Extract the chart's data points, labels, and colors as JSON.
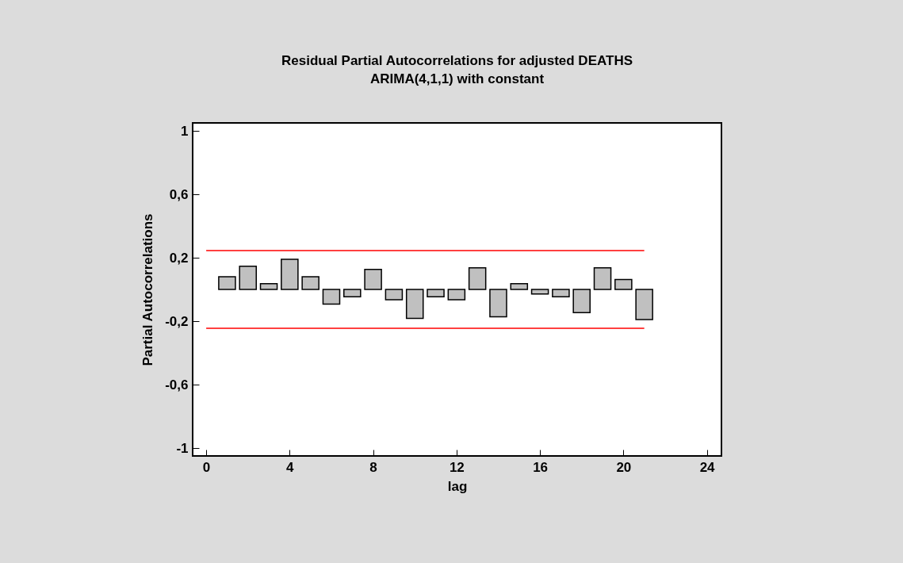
{
  "chart_data": {
    "type": "bar",
    "title": "Residual Partial Autocorrelations for adjusted DEATHS",
    "subtitle": "ARIMA(4,1,1) with constant",
    "xlabel": "lag",
    "ylabel": "Partial Autocorrelations",
    "x": [
      1,
      2,
      3,
      4,
      5,
      6,
      7,
      8,
      9,
      10,
      11,
      12,
      13,
      14,
      15,
      16,
      17,
      18,
      19,
      20,
      21
    ],
    "series": [
      {
        "color": "#c0c0c0",
        "values": [
          0.08,
          0.146,
          0.036,
          0.19,
          0.08,
          -0.092,
          -0.046,
          0.126,
          -0.065,
          -0.182,
          -0.046,
          -0.065,
          0.136,
          -0.173,
          0.036,
          -0.029,
          -0.046,
          -0.146,
          0.136,
          0.063,
          -0.19
        ]
      }
    ],
    "xlim": [
      -0.65,
      24.7
    ],
    "xticks": [
      0,
      4,
      8,
      12,
      16,
      20,
      24
    ],
    "ylim": [
      -1.05,
      1.05
    ],
    "yticks": [
      -1,
      {
        "value": -0.6,
        "label": "-0,6"
      },
      {
        "value": -0.2,
        "label": "-0,2"
      },
      {
        "value": 0.2,
        "label": "0,2"
      },
      {
        "value": 0.6,
        "label": "0,6"
      },
      1
    ],
    "ref_lines": [
      {
        "axis": "y",
        "value": 0.245,
        "color": "#ff0000"
      },
      {
        "axis": "y",
        "value": -0.245,
        "color": "#ff0000"
      }
    ],
    "grid": false
  }
}
